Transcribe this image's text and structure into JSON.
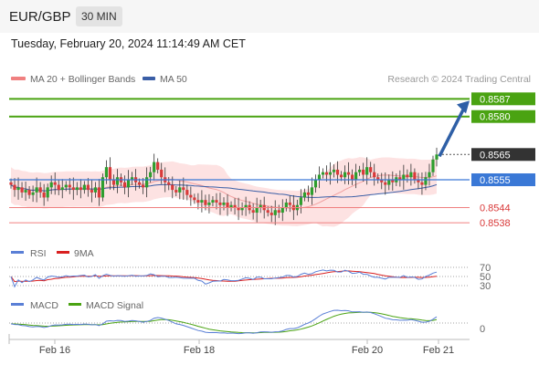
{
  "header": {
    "pair": "EUR/GBP",
    "timeframe": "30 MIN"
  },
  "timestamp": "Tuesday, February 20, 2024 11:14:49 AM CET",
  "legend": {
    "ma20": "MA 20 + Bollinger Bands",
    "ma50": "MA 50",
    "credit": "Research © 2024 Trading Central",
    "rsi": "RSI",
    "rsi_ma": "9MA",
    "macd": "MACD",
    "macd_signal": "MACD Signal"
  },
  "colors": {
    "bull": "#2e9e2e",
    "bear": "#d93a3a",
    "green_level": "#4aa312",
    "blue_level": "#3a78d6",
    "red_level": "#f08080",
    "ma20": "#f0a0a0",
    "ma50": "#3a5ea6",
    "band": "#fde2e2",
    "arrow": "#2e5fa6",
    "rsi": "#5a7fd6",
    "rsi_ma": "#d92020",
    "macd": "#5a7fd6",
    "macd_signal": "#4aa312"
  },
  "chart_data": [
    {
      "type": "candlestick",
      "title": "EUR/GBP 30 MIN",
      "x_tick_labels": [
        "Feb 16",
        "Feb 18",
        "Feb 20",
        "Feb 21"
      ],
      "ylim": [
        0.8533,
        0.859
      ],
      "levels": [
        {
          "value": 0.8587,
          "label": "0.8587",
          "kind": "resistance"
        },
        {
          "value": 0.858,
          "label": "0.8580",
          "kind": "resistance"
        },
        {
          "value": 0.8565,
          "label": "0.8565",
          "kind": "last-price"
        },
        {
          "value": 0.8555,
          "label": "0.8555",
          "kind": "pivot"
        },
        {
          "value": 0.8544,
          "label": "0.8544",
          "kind": "support"
        },
        {
          "value": 0.8538,
          "label": "0.8538",
          "kind": "support"
        }
      ],
      "close": [
        0.8553,
        0.8551,
        0.8552,
        0.855,
        0.8551,
        0.8549,
        0.855,
        0.8552,
        0.855,
        0.8548,
        0.8552,
        0.8554,
        0.8553,
        0.8551,
        0.8552,
        0.8553,
        0.8552,
        0.8551,
        0.8552,
        0.8551,
        0.8553,
        0.8551,
        0.855,
        0.8552,
        0.8548,
        0.8556,
        0.856,
        0.8555,
        0.8553,
        0.8556,
        0.8554,
        0.8552,
        0.8555,
        0.8556,
        0.8554,
        0.8553,
        0.8552,
        0.8556,
        0.8558,
        0.8562,
        0.8559,
        0.8556,
        0.8554,
        0.8553,
        0.8551,
        0.855,
        0.8552,
        0.8551,
        0.8549,
        0.8548,
        0.8547,
        0.8546,
        0.8547,
        0.8545,
        0.8546,
        0.8547,
        0.8546,
        0.8545,
        0.8546,
        0.8544,
        0.8545,
        0.8544,
        0.8543,
        0.8544,
        0.8545,
        0.8543,
        0.8542,
        0.8544,
        0.8545,
        0.8543,
        0.8542,
        0.8541,
        0.8543,
        0.8542,
        0.8544,
        0.8546,
        0.8545,
        0.8543,
        0.8545,
        0.8548,
        0.855,
        0.8549,
        0.8552,
        0.8555,
        0.8557,
        0.8558,
        0.8557,
        0.8558,
        0.8559,
        0.8557,
        0.8556,
        0.8558,
        0.8557,
        0.8555,
        0.8558,
        0.8559,
        0.8557,
        0.856,
        0.8558,
        0.8556,
        0.8555,
        0.8554,
        0.8553,
        0.8555,
        0.8554,
        0.8556,
        0.8555,
        0.8557,
        0.8556,
        0.8558,
        0.8555,
        0.8554,
        0.8553,
        0.8556,
        0.8558,
        0.8563,
        0.8565
      ],
      "ma20_end": 0.8555,
      "ma50_end": 0.8554
    },
    {
      "type": "line",
      "name": "RSI",
      "y_tick_labels": [
        "70",
        "50",
        "30"
      ],
      "ylim": [
        20,
        80
      ],
      "series": [
        {
          "name": "RSI"
        },
        {
          "name": "9MA"
        }
      ]
    },
    {
      "type": "line",
      "name": "MACD",
      "y_tick_labels": [
        "0"
      ],
      "series": [
        {
          "name": "MACD"
        },
        {
          "name": "MACD Signal"
        }
      ]
    }
  ]
}
